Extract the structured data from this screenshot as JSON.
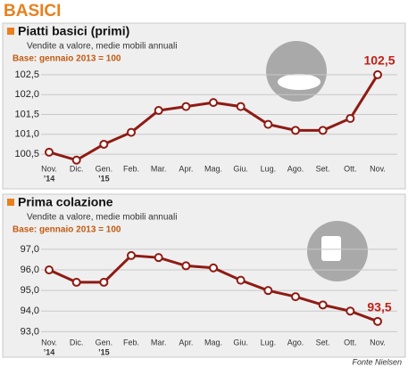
{
  "header": {
    "title": "BASICI"
  },
  "chart_data": [
    {
      "type": "line",
      "title": "Piatti basici (primi)",
      "subtitle": "Vendite a valore, medie mobili annuali",
      "note": "Base: gennaio 2013 = 100",
      "categories": [
        "Nov.",
        "Dic.",
        "Gen.",
        "Feb.",
        "Mar.",
        "Apr.",
        "Mag.",
        "Giu.",
        "Lug.",
        "Ago.",
        "Set.",
        "Ott.",
        "Nov."
      ],
      "year_labels": [
        "’14",
        null,
        "’15",
        null,
        null,
        null,
        null,
        null,
        null,
        null,
        null,
        null,
        null
      ],
      "values": [
        100.55,
        100.35,
        100.75,
        101.05,
        101.6,
        101.7,
        101.8,
        101.7,
        101.25,
        101.1,
        101.1,
        101.4,
        102.5
      ],
      "value_labels": [
        null,
        null,
        null,
        null,
        null,
        null,
        null,
        null,
        null,
        null,
        null,
        null,
        "102,5"
      ],
      "color": "#8e1b14",
      "ylim": [
        100.3,
        102.7
      ],
      "yticks": [
        {
          "value": 100.5,
          "label": "100,5"
        },
        {
          "value": 101,
          "label": "101,0"
        },
        {
          "value": 101.5,
          "label": "101,5"
        },
        {
          "value": 102,
          "label": "102,0"
        },
        {
          "value": 102.5,
          "label": "102,5"
        }
      ],
      "grid": true
    },
    {
      "type": "line",
      "title": "Prima colazione",
      "subtitle": "Vendite a valore, medie mobili annuali",
      "note": "Base: gennaio 2013 = 100",
      "categories": [
        "Nov.",
        "Dic.",
        "Gen.",
        "Feb.",
        "Mar.",
        "Apr.",
        "Mag.",
        "Giu.",
        "Lug.",
        "Ago.",
        "Set.",
        "Ott.",
        "Nov."
      ],
      "year_labels": [
        "’14",
        null,
        "’15",
        null,
        null,
        null,
        null,
        null,
        null,
        null,
        null,
        null,
        null
      ],
      "values": [
        96.0,
        95.4,
        95.4,
        96.7,
        96.6,
        96.2,
        96.1,
        95.5,
        95.0,
        94.7,
        94.3,
        94.0,
        93.5
      ],
      "value_labels": [
        null,
        null,
        null,
        null,
        null,
        null,
        null,
        null,
        null,
        null,
        null,
        null,
        "93,5"
      ],
      "color": "#8e1b14",
      "ylim": [
        92.8,
        97.3
      ],
      "yticks": [
        {
          "value": 93,
          "label": "93,0"
        },
        {
          "value": 94,
          "label": "94,0"
        },
        {
          "value": 95,
          "label": "95,0"
        },
        {
          "value": 96,
          "label": "96,0"
        },
        {
          "value": 97,
          "label": "97,0"
        }
      ],
      "grid": true
    }
  ],
  "source": "Fonte Nielsen"
}
